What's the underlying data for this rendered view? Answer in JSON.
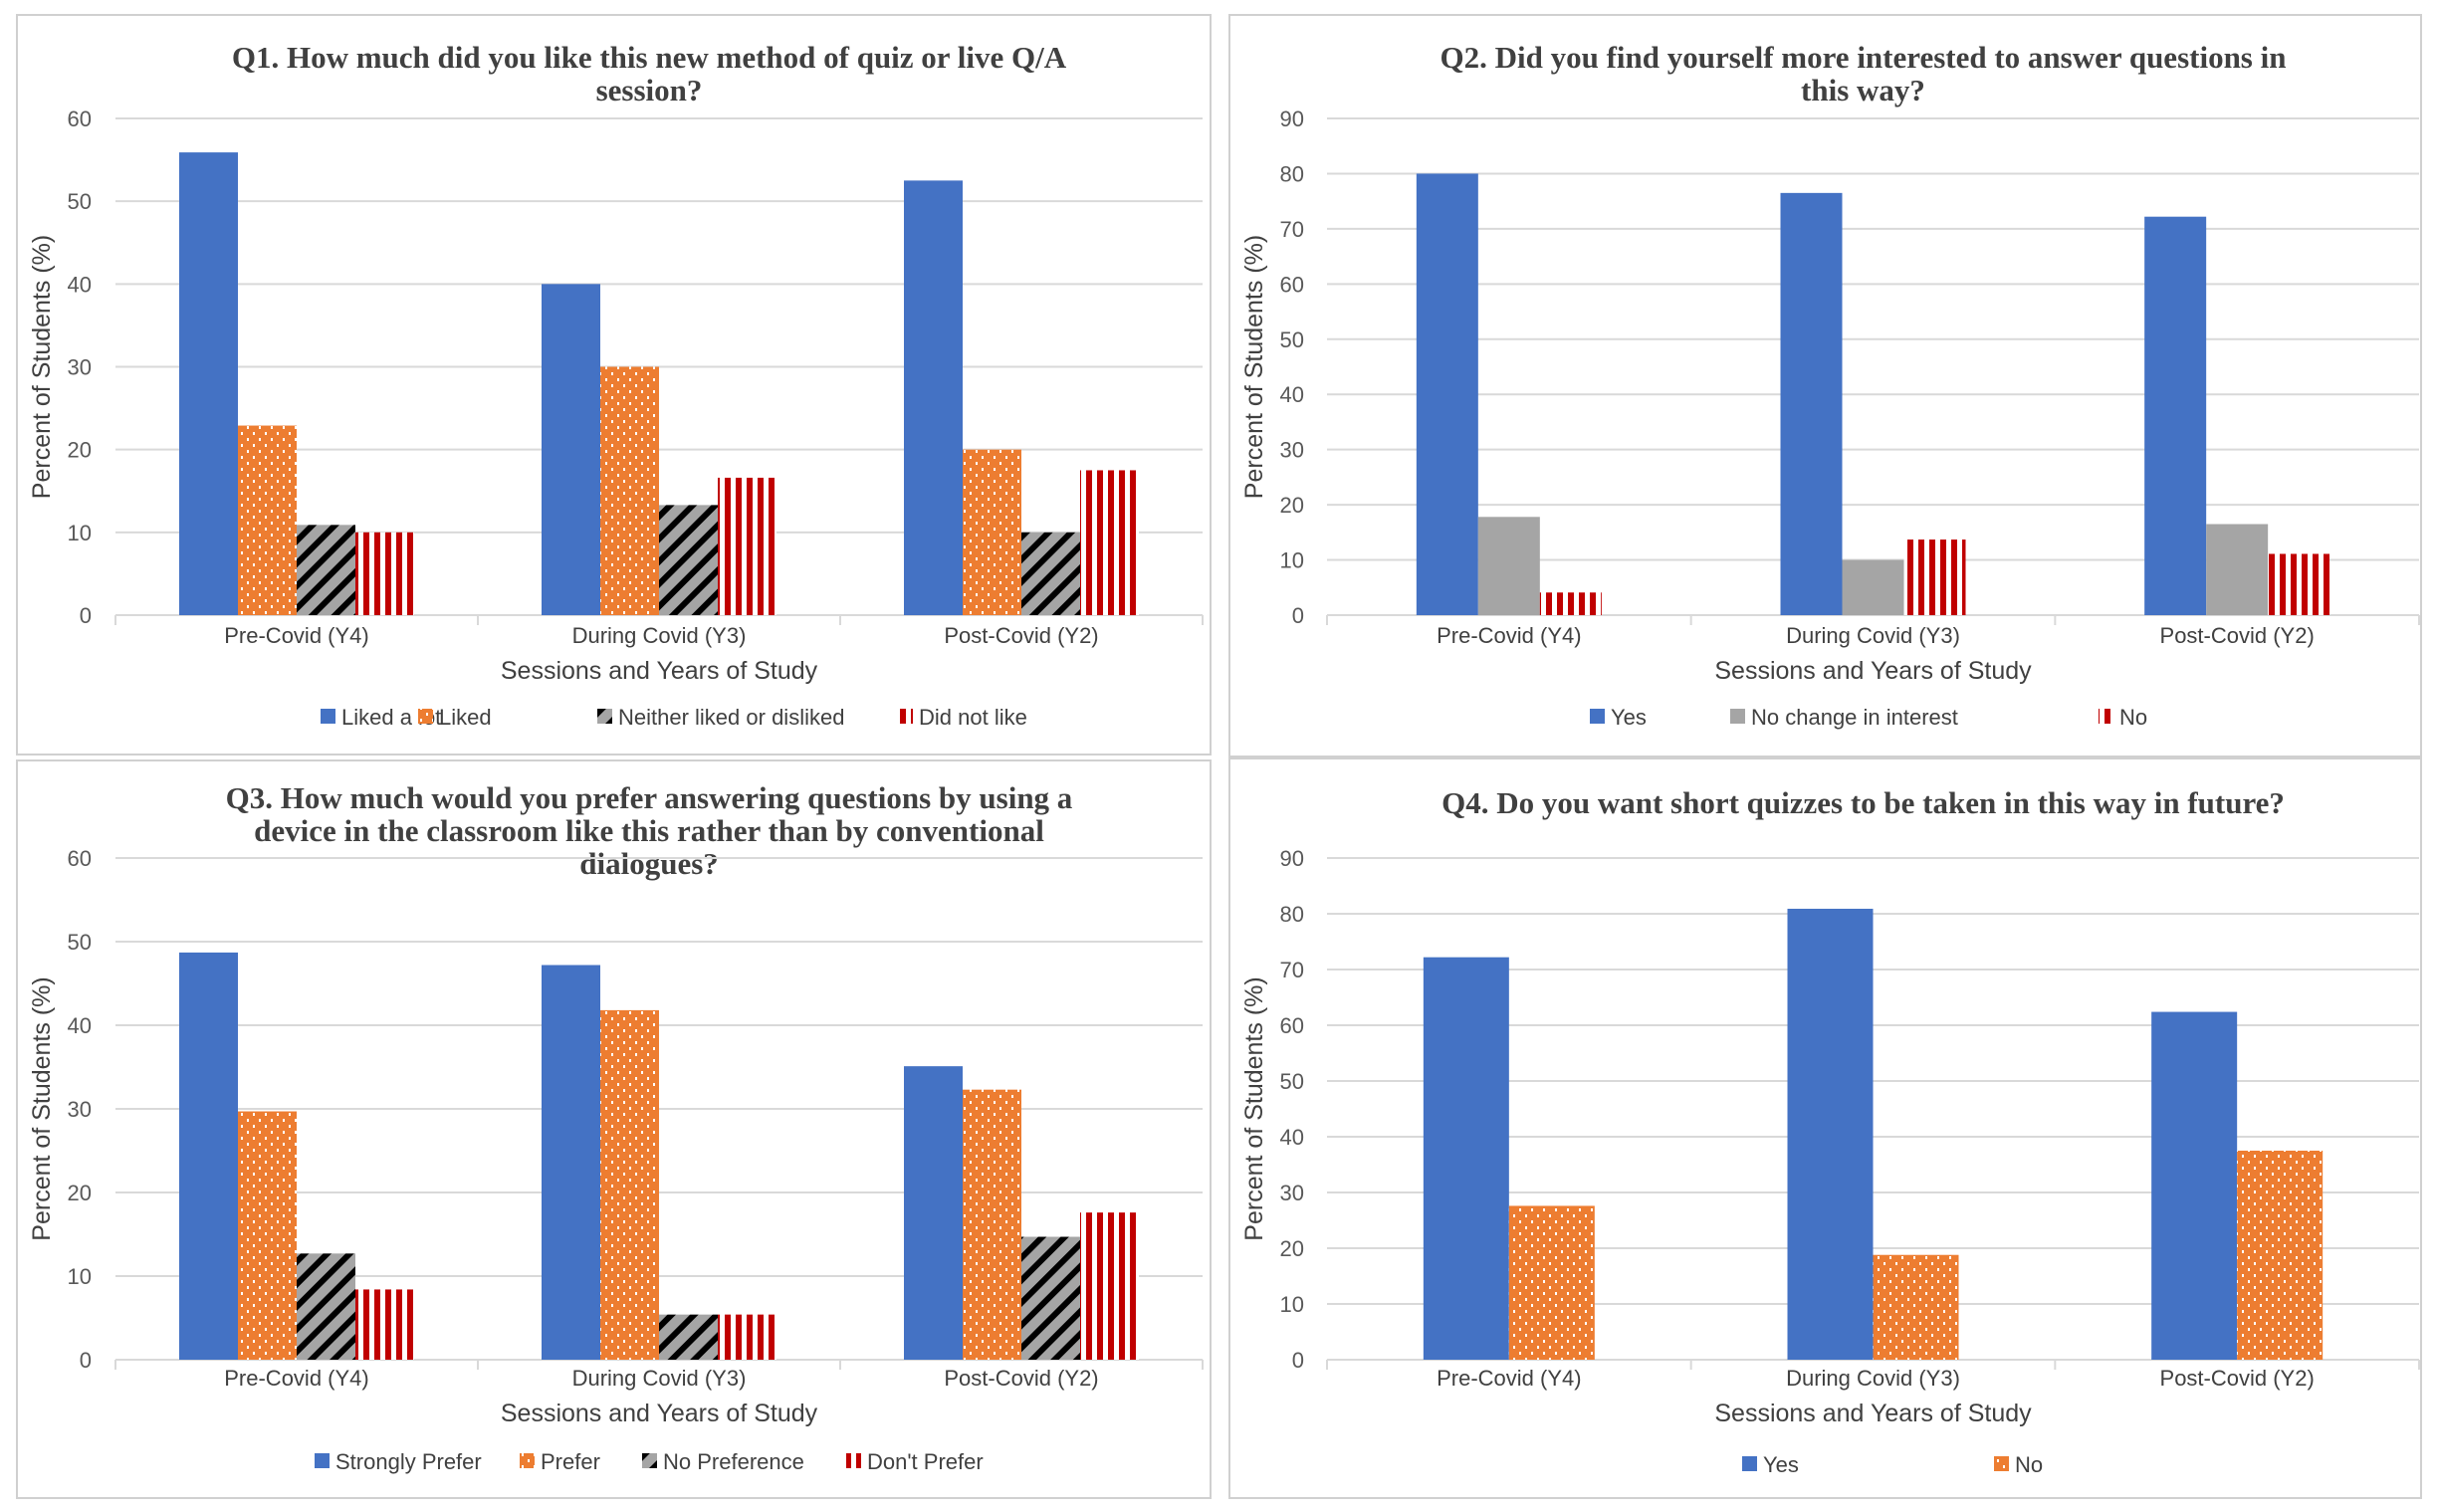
{
  "colors": {
    "blue": "#4472C4",
    "orange": "#ED7D31",
    "gray": "#A5A5A5",
    "red": "#C00000",
    "grid": "#D9D9D9",
    "border": "#D0D0D0"
  },
  "chart_data": [
    {
      "id": "q1",
      "type": "bar",
      "title": [
        "Q1. How much did you like this new method of quiz or live Q/A",
        "session?"
      ],
      "xlabel": "Sessions and Years of Study",
      "ylabel": "Percent of Students (%)",
      "ylim": [
        0,
        60
      ],
      "yticks": [
        0,
        10,
        20,
        30,
        40,
        50,
        60
      ],
      "grid": true,
      "legend_position": "bottom",
      "categories": [
        "Pre-Covid (Y4)",
        "During Covid (Y3)",
        "Post-Covid (Y2)"
      ],
      "series": [
        {
          "name": "Liked a lot",
          "pattern": "solid-blue",
          "values": [
            55.9,
            40.0,
            52.5
          ]
        },
        {
          "name": "Liked",
          "pattern": "dotted-orange",
          "values": [
            22.9,
            30.0,
            20.0
          ]
        },
        {
          "name": "Neither liked or disliked",
          "pattern": "diagonal-gray",
          "values": [
            10.9,
            13.3,
            10.0
          ]
        },
        {
          "name": "Did not like",
          "pattern": "vertical-red",
          "values": [
            10.0,
            16.6,
            17.5
          ]
        }
      ]
    },
    {
      "id": "q2",
      "type": "bar",
      "title": [
        "Q2. Did you find yourself more interested to answer questions in",
        "this way?"
      ],
      "xlabel": "Sessions and Years of Study",
      "ylabel": "Percent of Students (%)",
      "ylim": [
        0,
        90
      ],
      "yticks": [
        0,
        10,
        20,
        30,
        40,
        50,
        60,
        70,
        80,
        90
      ],
      "grid": true,
      "legend_position": "bottom",
      "categories": [
        "Pre-Covid (Y4)",
        "During Covid (Y3)",
        "Post-Covid (Y2)"
      ],
      "series": [
        {
          "name": "Yes",
          "pattern": "solid-blue",
          "values": [
            80.0,
            76.5,
            72.2
          ]
        },
        {
          "name": "No change in interest",
          "pattern": "solid-gray",
          "values": [
            17.8,
            10.0,
            16.5
          ]
        },
        {
          "name": "No",
          "pattern": "vertical-red",
          "values": [
            4.1,
            13.7,
            11.1
          ]
        }
      ]
    },
    {
      "id": "q3",
      "type": "bar",
      "title": [
        "Q3. How much would you prefer answering questions by using a",
        "device in the classroom like this rather than by conventional",
        "dialogues?"
      ],
      "xlabel": "Sessions and Years of Study",
      "ylabel": "Percent of Students (%)",
      "ylim": [
        0,
        60
      ],
      "yticks": [
        0,
        10,
        20,
        30,
        40,
        50,
        60
      ],
      "grid": true,
      "legend_position": "bottom",
      "categories": [
        "Pre-Covid (Y4)",
        "During Covid (Y3)",
        "Post-Covid (Y2)"
      ],
      "series": [
        {
          "name": "Strongly Prefer",
          "pattern": "solid-blue",
          "values": [
            48.7,
            47.2,
            35.1
          ]
        },
        {
          "name": "Prefer",
          "pattern": "dotted-orange",
          "values": [
            29.7,
            41.8,
            32.3
          ]
        },
        {
          "name": "No Preference",
          "pattern": "diagonal-gray",
          "values": [
            12.7,
            5.4,
            14.7
          ]
        },
        {
          "name": "Don't Prefer",
          "pattern": "vertical-red",
          "values": [
            8.4,
            5.4,
            17.6
          ]
        }
      ]
    },
    {
      "id": "q4",
      "type": "bar",
      "title": [
        "Q4. Do you want short quizzes to be taken in this way in future?"
      ],
      "xlabel": "Sessions and Years of Study",
      "ylabel": "Percent of Students (%)",
      "ylim": [
        0,
        90
      ],
      "yticks": [
        0,
        10,
        20,
        30,
        40,
        50,
        60,
        70,
        80,
        90
      ],
      "grid": true,
      "legend_position": "bottom",
      "categories": [
        "Pre-Covid (Y4)",
        "During Covid (Y3)",
        "Post-Covid (Y2)"
      ],
      "series": [
        {
          "name": "Yes",
          "pattern": "solid-blue",
          "values": [
            72.2,
            80.9,
            62.4
          ]
        },
        {
          "name": "No",
          "pattern": "dotted-orange",
          "values": [
            27.6,
            18.8,
            37.5
          ]
        }
      ]
    }
  ]
}
